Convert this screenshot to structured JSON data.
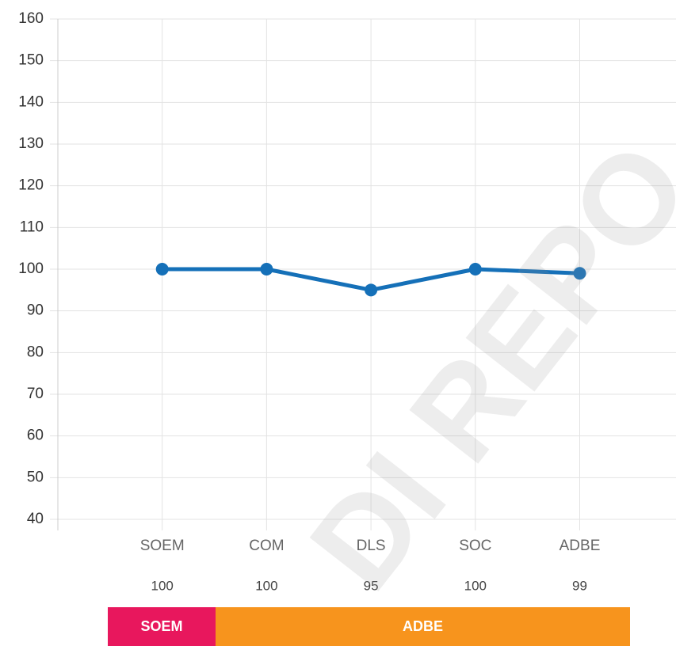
{
  "chart_data": {
    "type": "line",
    "categories": [
      "SOEM",
      "COM",
      "DLS",
      "SOC",
      "ADBE"
    ],
    "values": [
      100,
      100,
      95,
      100,
      99
    ],
    "color": "#1570b8",
    "ylim": [
      40,
      160
    ],
    "yticks": [
      40,
      50,
      60,
      70,
      80,
      90,
      100,
      110,
      120,
      130,
      140,
      150,
      160
    ],
    "grid": true
  },
  "status_bar": [
    {
      "label": "SOEM",
      "color": "#e8175d"
    },
    {
      "label": "ADBE",
      "color": "#f7941d"
    }
  ],
  "watermark": "DI REPO"
}
